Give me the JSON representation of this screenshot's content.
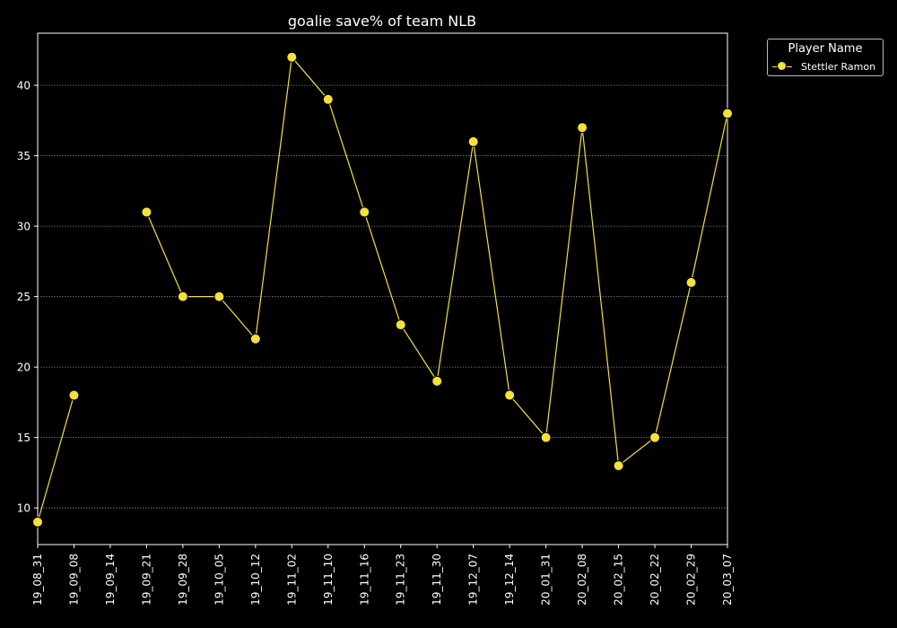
{
  "chart_data": {
    "type": "line",
    "title": "goalie save% of team NLB",
    "xlabel": "",
    "ylabel": "",
    "categories": [
      "19_08_31",
      "19_09_08",
      "19_09_14",
      "19_09_21",
      "19_09_28",
      "19_10_05",
      "19_10_12",
      "19_11_02",
      "19_11_10",
      "19_11_16",
      "19_11_23",
      "19_11_30",
      "19_12_07",
      "19_12_14",
      "20_01_31",
      "20_02_08",
      "20_02_15",
      "20_02_22",
      "20_02_29",
      "20_03_07"
    ],
    "series": [
      {
        "name": "Stettler Ramon",
        "color": "#f5e13a",
        "values": [
          9,
          18,
          null,
          31,
          25,
          25,
          22,
          42,
          39,
          31,
          23,
          19,
          36,
          18,
          15,
          37,
          13,
          15,
          26,
          38
        ]
      }
    ],
    "ylim": [
      7.4,
      43.7
    ],
    "yticks": [
      10,
      15,
      20,
      25,
      30,
      35,
      40
    ],
    "grid": "y-dotted",
    "legend": {
      "title": "Player Name",
      "placement": "outside-top-right"
    }
  }
}
